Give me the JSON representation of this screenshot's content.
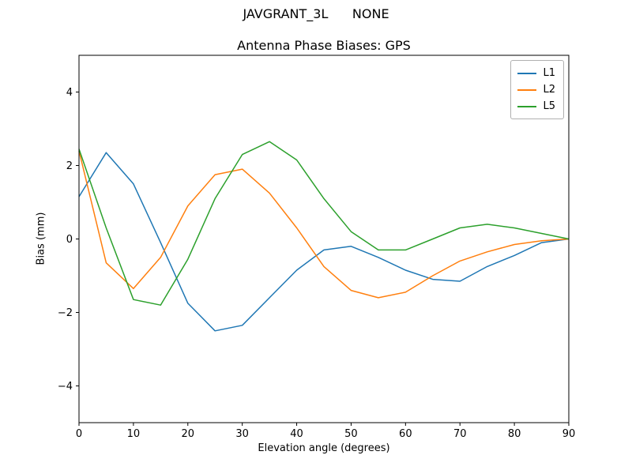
{
  "chart_data": {
    "type": "line",
    "figure_title": "JAVGRANT_3L      NONE",
    "title": "Antenna Phase Biases: GPS",
    "xlabel": "Elevation angle (degrees)",
    "ylabel": "Bias (mm)",
    "xlim": [
      0,
      90
    ],
    "ylim": [
      -5,
      5
    ],
    "xticks": [
      0,
      10,
      20,
      30,
      40,
      50,
      60,
      70,
      80,
      90
    ],
    "yticks": [
      -4,
      -2,
      0,
      2,
      4
    ],
    "grid": false,
    "legend_position": "upper right",
    "x": [
      0,
      5,
      10,
      15,
      20,
      25,
      30,
      35,
      40,
      45,
      50,
      55,
      60,
      65,
      70,
      75,
      80,
      85,
      90
    ],
    "series": [
      {
        "name": "L1",
        "color": "#1f77b4",
        "values": [
          1.15,
          2.35,
          1.5,
          -0.1,
          -1.75,
          -2.5,
          -2.35,
          -1.6,
          -0.85,
          -0.3,
          -0.2,
          -0.5,
          -0.85,
          -1.1,
          -1.15,
          -0.75,
          -0.45,
          -0.1,
          0.0
        ]
      },
      {
        "name": "L2",
        "color": "#ff7f0e",
        "values": [
          2.4,
          -0.65,
          -1.35,
          -0.5,
          0.9,
          1.75,
          1.9,
          1.25,
          0.3,
          -0.75,
          -1.4,
          -1.6,
          -1.45,
          -1.0,
          -0.6,
          -0.35,
          -0.15,
          -0.05,
          0.0
        ]
      },
      {
        "name": "L5",
        "color": "#2ca02c",
        "values": [
          2.45,
          0.3,
          -1.65,
          -1.8,
          -0.55,
          1.1,
          2.3,
          2.65,
          2.15,
          1.1,
          0.2,
          -0.3,
          -0.3,
          0.0,
          0.3,
          0.4,
          0.3,
          0.15,
          0.0
        ]
      }
    ]
  }
}
